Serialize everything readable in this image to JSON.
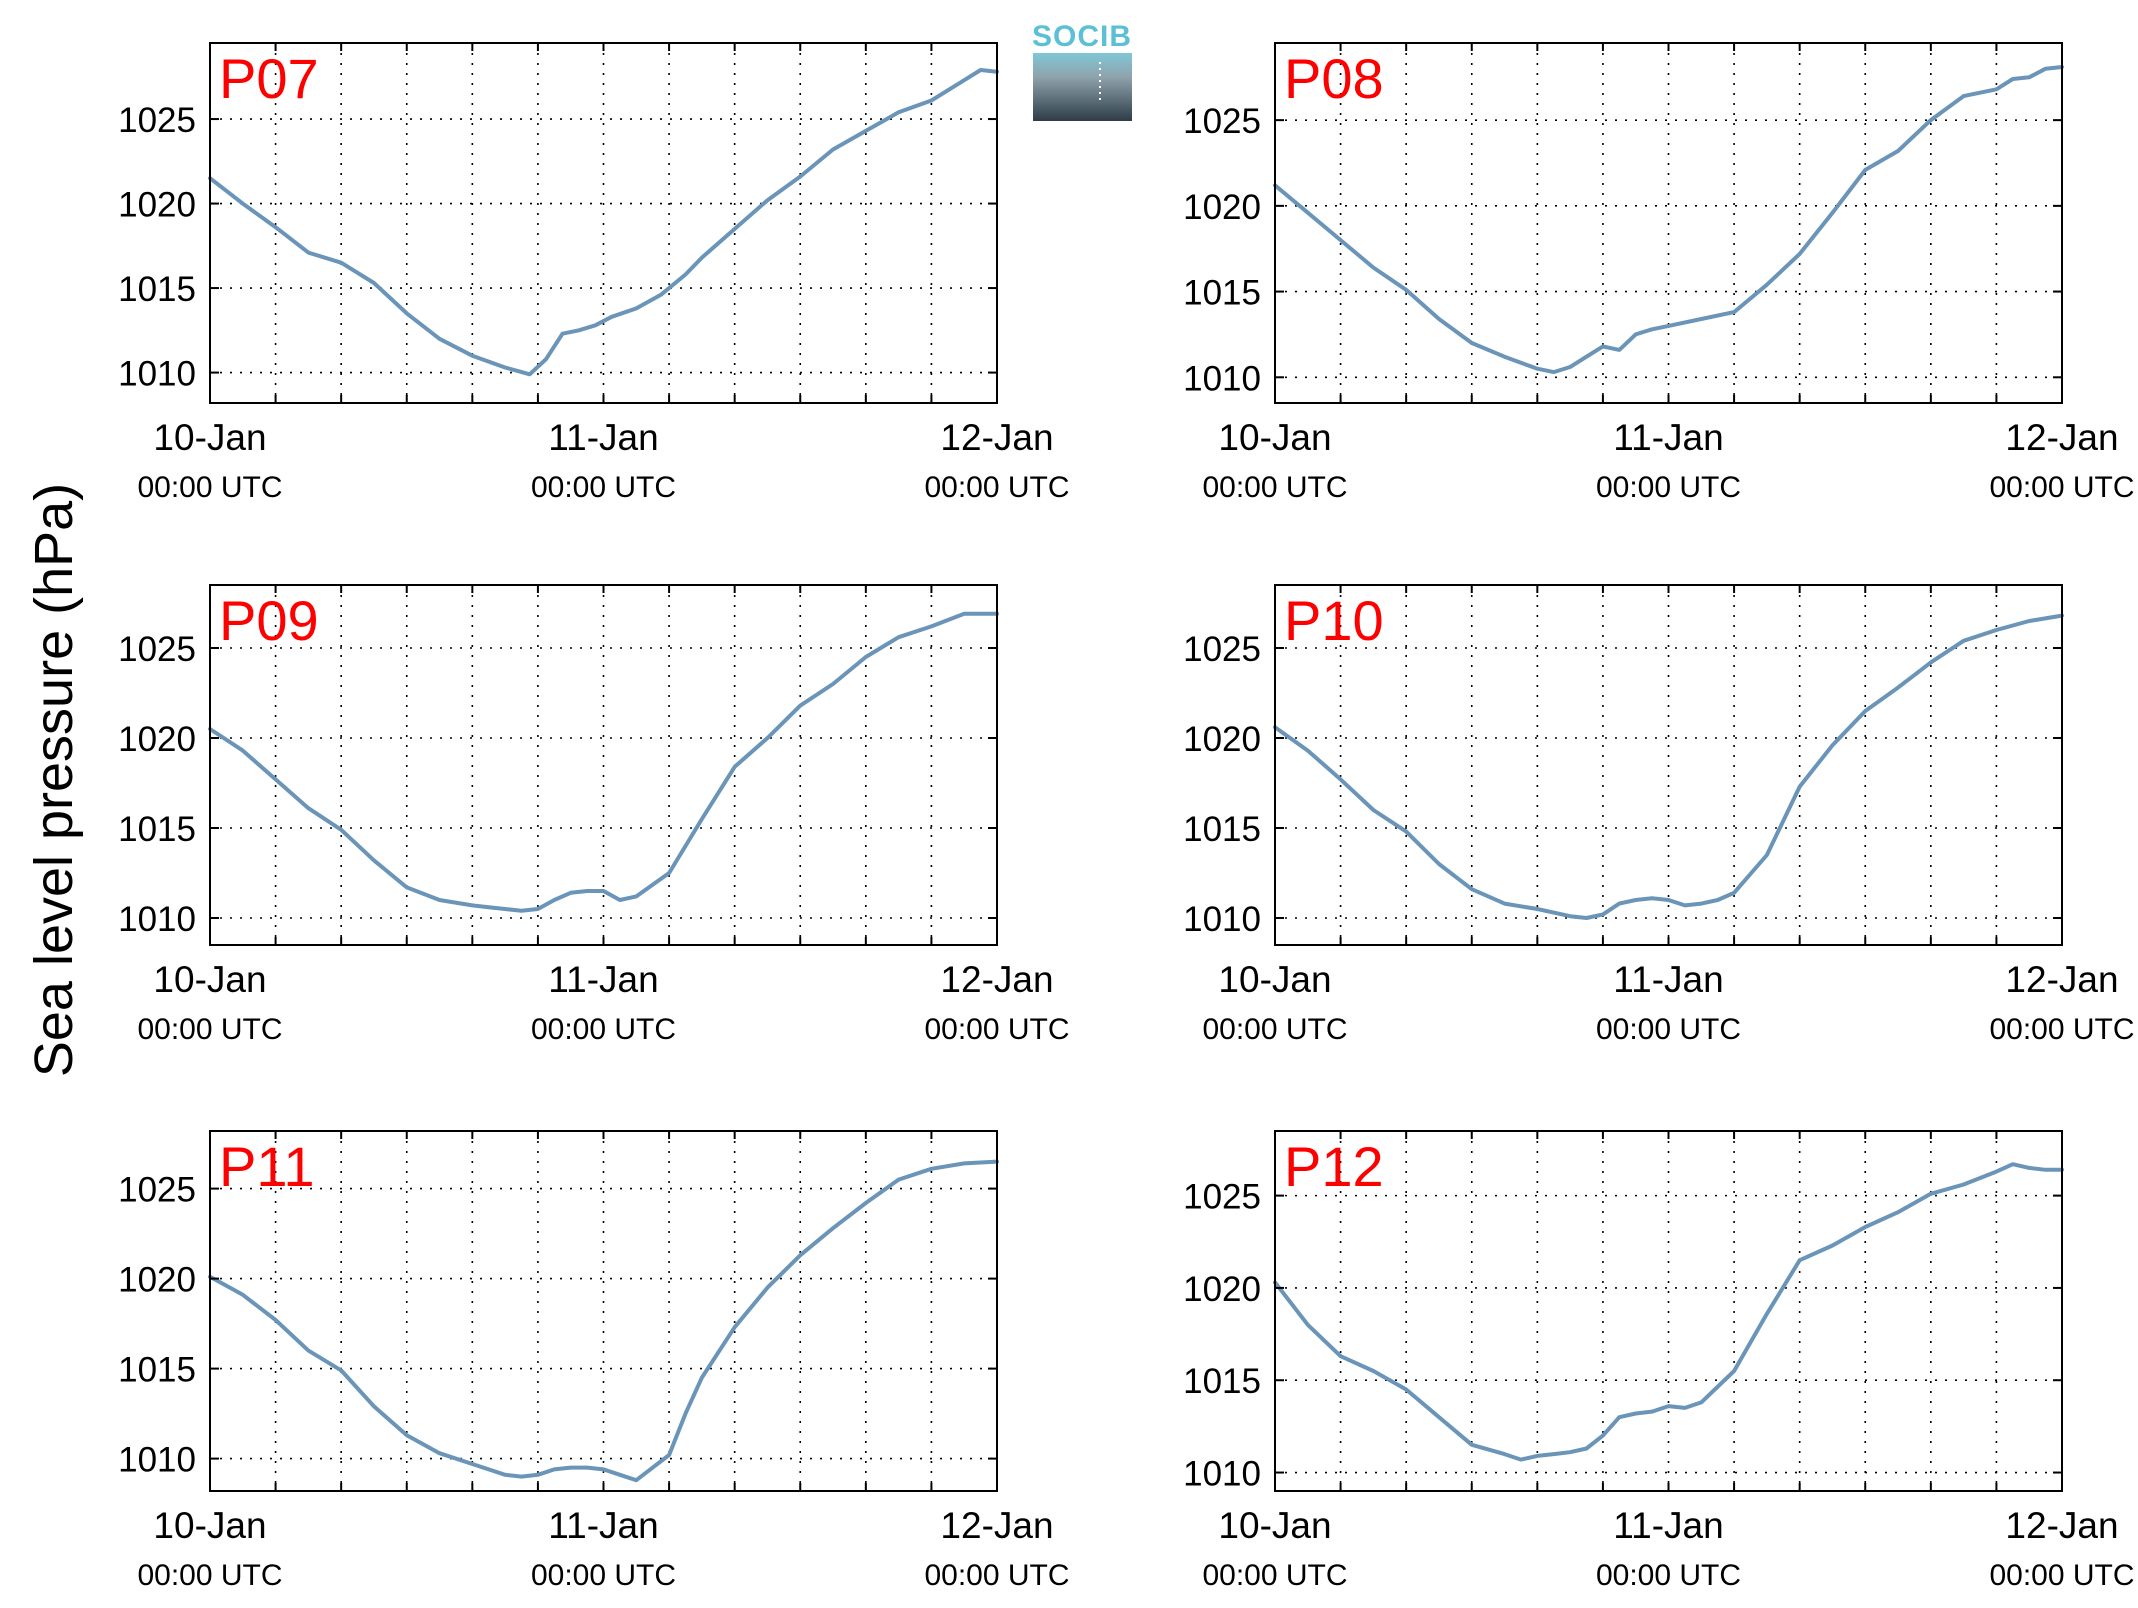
{
  "logo": {
    "text": "SOCIB"
  },
  "colors": {
    "line": "#6a95b9",
    "panel_label": "#ff0000",
    "axis": "#000000",
    "grid": "#000000",
    "logo_text": "#5bbfd6",
    "logo_top": "#7fc7d6",
    "logo_bottom": "#2e3d48"
  },
  "chart_data": {
    "type": "line",
    "ylabel": "Sea level pressure (hPa)",
    "xlim": [
      "10-Jan 00:00 UTC",
      "12-Jan 00:00 UTC"
    ],
    "x_tick_labels": [
      {
        "date": "10-Jan",
        "time": "00:00 UTC"
      },
      {
        "date": "11-Jan",
        "time": "00:00 UTC"
      },
      {
        "date": "12-Jan",
        "time": "00:00 UTC"
      }
    ],
    "yticks": [
      1010,
      1015,
      1020,
      1025
    ],
    "grid": true,
    "x_unit_note": "x values are hours since 10-Jan 00:00 UTC",
    "panels": [
      {
        "label": "P07",
        "ylim": [
          1008.2,
          1029.5
        ],
        "x": [
          0,
          2,
          4,
          6,
          8,
          10,
          12,
          14,
          16,
          18,
          19.5,
          20.5,
          21.5,
          22.5,
          23.5,
          24.5,
          26,
          27.5,
          29,
          30,
          32,
          34,
          36,
          38,
          40,
          42,
          44,
          46,
          47,
          48
        ],
        "y": [
          1021.5,
          1020,
          1018.6,
          1017.1,
          1016.5,
          1015.3,
          1013.5,
          1012,
          1011,
          1010.3,
          1009.9,
          1010.8,
          1012.3,
          1012.5,
          1012.8,
          1013.3,
          1013.8,
          1014.6,
          1015.8,
          1016.8,
          1018.5,
          1020.2,
          1021.6,
          1023.2,
          1024.3,
          1025.4,
          1026.1,
          1027.3,
          1027.9,
          1027.8
        ]
      },
      {
        "label": "P08",
        "ylim": [
          1008.5,
          1029.5
        ],
        "x": [
          0,
          2,
          4,
          6,
          8,
          10,
          12,
          14,
          16,
          17,
          18,
          19,
          20,
          21,
          22,
          23,
          24,
          26,
          28,
          30,
          32,
          34,
          36,
          38,
          40,
          42,
          44,
          45,
          46,
          47,
          48
        ],
        "y": [
          1021.2,
          1019.6,
          1018,
          1016.4,
          1015.1,
          1013.4,
          1012,
          1011.2,
          1010.5,
          1010.3,
          1010.6,
          1011.2,
          1011.8,
          1011.6,
          1012.5,
          1012.8,
          1013,
          1013.4,
          1013.8,
          1015.4,
          1017.2,
          1019.6,
          1022.1,
          1023.2,
          1025,
          1026.4,
          1026.8,
          1027.4,
          1027.5,
          1028,
          1028.1
        ]
      },
      {
        "label": "P09",
        "ylim": [
          1008.5,
          1028.5
        ],
        "x": [
          0,
          2,
          4,
          6,
          8,
          10,
          12,
          14,
          16,
          17,
          18,
          19,
          20,
          21,
          22,
          23,
          24,
          25,
          26,
          28,
          30,
          32,
          34,
          36,
          38,
          40,
          42,
          44,
          46,
          48
        ],
        "y": [
          1020.5,
          1019.3,
          1017.7,
          1016.1,
          1014.9,
          1013.2,
          1011.7,
          1011,
          1010.7,
          1010.6,
          1010.5,
          1010.4,
          1010.5,
          1011,
          1011.4,
          1011.5,
          1011.5,
          1011,
          1011.2,
          1012.5,
          1015.5,
          1018.4,
          1020,
          1021.8,
          1023,
          1024.5,
          1025.6,
          1026.2,
          1026.9,
          1026.9
        ]
      },
      {
        "label": "P10",
        "ylim": [
          1008.5,
          1028.5
        ],
        "x": [
          0,
          2,
          4,
          6,
          8,
          10,
          12,
          14,
          16,
          17,
          18,
          19,
          20,
          21,
          22,
          23,
          24,
          25,
          26,
          27,
          28,
          30,
          32,
          34,
          36,
          38,
          40,
          42,
          44,
          46,
          48
        ],
        "y": [
          1020.6,
          1019.3,
          1017.7,
          1016,
          1014.8,
          1013,
          1011.6,
          1010.8,
          1010.5,
          1010.3,
          1010.1,
          1010.0,
          1010.2,
          1010.8,
          1011.0,
          1011.1,
          1011.0,
          1010.7,
          1010.8,
          1011,
          1011.4,
          1013.5,
          1017.3,
          1019.6,
          1021.5,
          1022.8,
          1024.2,
          1025.4,
          1026,
          1026.5,
          1026.8
        ]
      },
      {
        "label": "P11",
        "ylim": [
          1008.2,
          1028.2
        ],
        "x": [
          0,
          2,
          4,
          6,
          8,
          10,
          12,
          14,
          16,
          17,
          18,
          19,
          20,
          21,
          22,
          23,
          24,
          25,
          26,
          27,
          28,
          29,
          30,
          32,
          34,
          36,
          38,
          40,
          42,
          44,
          46,
          48
        ],
        "y": [
          1020.1,
          1019.1,
          1017.7,
          1016,
          1014.9,
          1012.9,
          1011.3,
          1010.3,
          1009.7,
          1009.4,
          1009.1,
          1009.0,
          1009.1,
          1009.4,
          1009.5,
          1009.5,
          1009.4,
          1009.1,
          1008.8,
          1009.5,
          1010.2,
          1012.5,
          1014.5,
          1017.3,
          1019.5,
          1021.3,
          1022.8,
          1024.2,
          1025.5,
          1026.1,
          1026.4,
          1026.5
        ]
      },
      {
        "label": "P12",
        "ylim": [
          1009,
          1028.5
        ],
        "x": [
          0,
          2,
          4,
          6,
          8,
          10,
          12,
          14,
          15,
          16,
          17,
          18,
          19,
          20,
          21,
          22,
          23,
          24,
          25,
          26,
          28,
          30,
          32,
          34,
          36,
          38,
          40,
          42,
          44,
          45,
          46,
          47,
          48
        ],
        "y": [
          1020.3,
          1018,
          1016.3,
          1015.5,
          1014.5,
          1013,
          1011.5,
          1011,
          1010.7,
          1010.9,
          1011,
          1011.1,
          1011.3,
          1012,
          1013,
          1013.2,
          1013.3,
          1013.6,
          1013.5,
          1013.8,
          1015.5,
          1018.6,
          1021.5,
          1022.3,
          1023.3,
          1024.1,
          1025.1,
          1025.6,
          1026.3,
          1026.7,
          1026.5,
          1026.4,
          1026.4
        ]
      }
    ]
  }
}
